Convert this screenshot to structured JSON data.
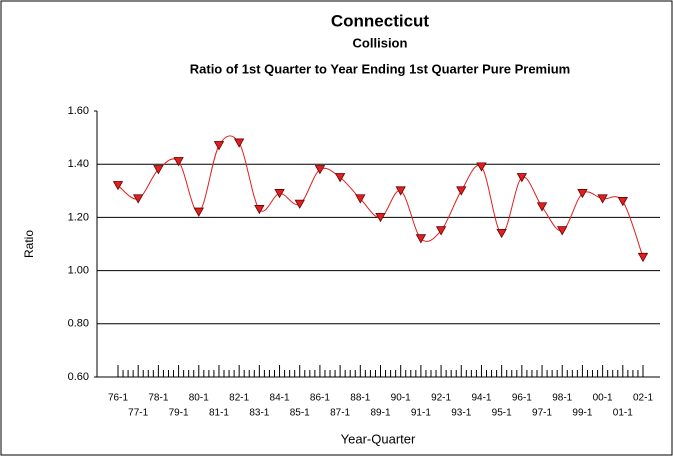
{
  "chart_data": {
    "type": "line",
    "title": "Connecticut",
    "subtitle": "Collision",
    "subtitle2": "Ratio of 1st Quarter to Year Ending 1st Quarter Pure Premium",
    "y_label": "Ratio",
    "x_label": "Year-Quarter",
    "categories": [
      "76-1",
      "77-1",
      "78-1",
      "79-1",
      "80-1",
      "81-1",
      "82-1",
      "83-1",
      "84-1",
      "85-1",
      "86-1",
      "87-1",
      "88-1",
      "89-1",
      "90-1",
      "91-1",
      "92-1",
      "93-1",
      "94-1",
      "95-1",
      "96-1",
      "97-1",
      "98-1",
      "99-1",
      "00-1",
      "01-1",
      "02-1"
    ],
    "series": [
      {
        "name": "Ratio",
        "color": "#e02020",
        "values": [
          1.32,
          1.27,
          1.38,
          1.41,
          1.22,
          1.47,
          1.48,
          1.23,
          1.29,
          1.25,
          1.38,
          1.35,
          1.27,
          1.2,
          1.3,
          1.12,
          1.15,
          1.3,
          1.39,
          1.14,
          1.35,
          1.24,
          1.15,
          1.29,
          1.27,
          1.26,
          1.05
        ]
      }
    ],
    "ylim": [
      0.6,
      1.6
    ],
    "yticks": [
      {
        "value": 0.6,
        "label": "0.60"
      },
      {
        "value": 0.8,
        "label": "0.80"
      },
      {
        "value": 1.0,
        "label": "1.00"
      },
      {
        "value": 1.2,
        "label": "1.20"
      },
      {
        "value": 1.4,
        "label": "1.40"
      },
      {
        "value": 1.6,
        "label": "1.60"
      }
    ],
    "grid": true
  }
}
